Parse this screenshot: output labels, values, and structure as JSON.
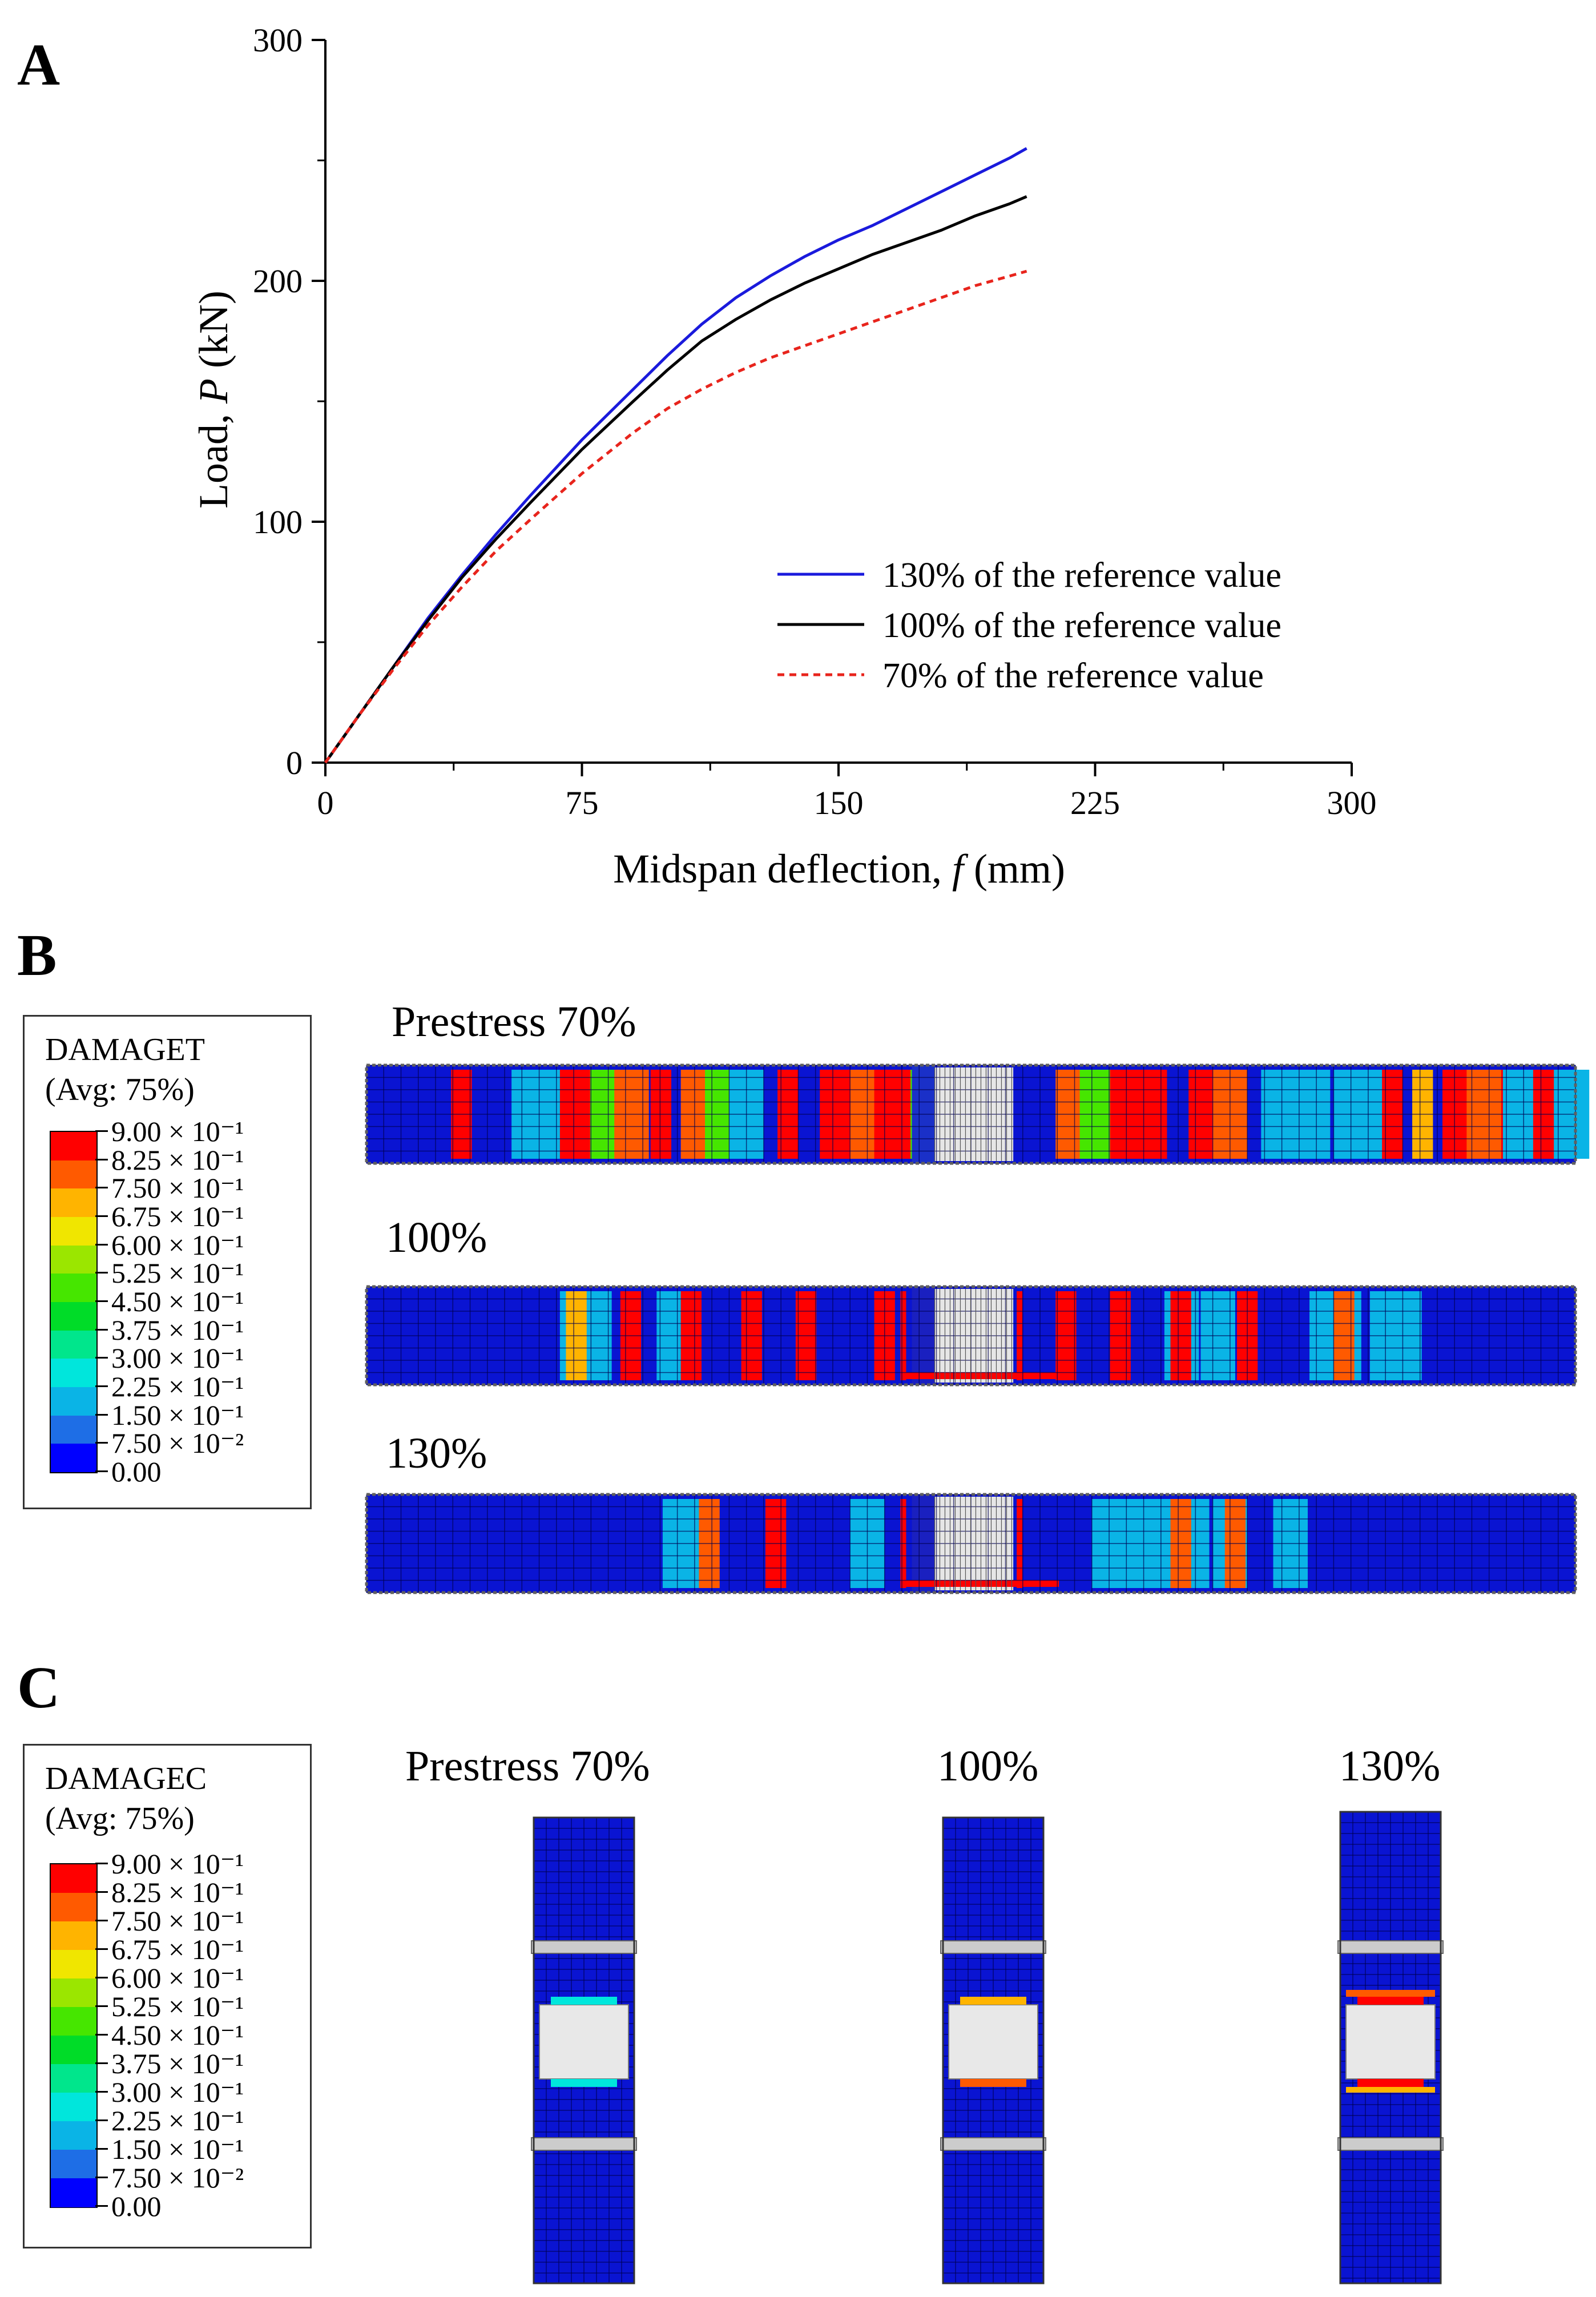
{
  "panel_labels": {
    "a": "A",
    "b": "B",
    "c": "C"
  },
  "chart_data": {
    "type": "line",
    "xlabel_text": "Midspan deflection, ",
    "xlabel_var": "f",
    "xlabel_unit": " (mm)",
    "ylabel_text": "Load, ",
    "ylabel_var": "P",
    "ylabel_unit": " (kN)",
    "xlim": [
      0,
      300
    ],
    "ylim": [
      0,
      300
    ],
    "xticks": [
      0,
      75,
      150,
      225,
      300
    ],
    "yticks": [
      0,
      100,
      200,
      300
    ],
    "grid": false,
    "legend_position": "bottom-right",
    "series": [
      {
        "name": "130% of the reference value",
        "color": "#1a1adc",
        "dash": "solid",
        "x": [
          0,
          10,
          20,
          30,
          40,
          50,
          60,
          75,
          90,
          100,
          110,
          120,
          130,
          140,
          150,
          160,
          170,
          180,
          190,
          200,
          205
        ],
        "y": [
          0,
          20,
          40,
          60,
          78,
          95,
          111,
          134,
          155,
          169,
          182,
          193,
          202,
          210,
          217,
          223,
          230,
          237,
          244,
          251,
          255
        ]
      },
      {
        "name": "100% of the reference value",
        "color": "#000000",
        "dash": "solid",
        "x": [
          0,
          10,
          20,
          30,
          40,
          50,
          60,
          75,
          90,
          100,
          110,
          120,
          130,
          140,
          150,
          160,
          170,
          180,
          190,
          200,
          205
        ],
        "y": [
          0,
          20,
          40,
          59,
          77,
          93,
          108,
          130,
          150,
          163,
          175,
          184,
          192,
          199,
          205,
          211,
          216,
          221,
          227,
          232,
          235
        ]
      },
      {
        "name": "70% of the reference value",
        "color": "#e8241c",
        "dash": "dashed",
        "x": [
          0,
          10,
          20,
          30,
          40,
          50,
          60,
          75,
          90,
          100,
          110,
          120,
          130,
          140,
          150,
          160,
          170,
          180,
          190,
          200,
          205
        ],
        "y": [
          0,
          20,
          39,
          57,
          73,
          88,
          101,
          120,
          137,
          147,
          155,
          162,
          168,
          173,
          178,
          183,
          188,
          193,
          198,
          202,
          204
        ]
      }
    ]
  },
  "damage_legend": {
    "avg": "(Avg: 75%)",
    "levels": [
      "9.00 × 10⁻¹",
      "8.25 × 10⁻¹",
      "7.50 × 10⁻¹",
      "6.75 × 10⁻¹",
      "6.00 × 10⁻¹",
      "5.25 × 10⁻¹",
      "4.50 × 10⁻¹",
      "3.75 × 10⁻¹",
      "3.00 × 10⁻¹",
      "2.25 × 10⁻¹",
      "1.50 × 10⁻¹",
      "7.50 × 10⁻²",
      "0.00"
    ],
    "colors": [
      "#ff0000",
      "#ff5a00",
      "#ffb400",
      "#f0e600",
      "#9be600",
      "#46e600",
      "#00dc28",
      "#00e68c",
      "#00e6dc",
      "#0ab4e6",
      "#1e6ee6",
      "#0000ff"
    ]
  },
  "panel_b": {
    "legend_title": "DAMAGET",
    "cases": [
      "Prestress 70%",
      "100%",
      "130%"
    ]
  },
  "panel_c": {
    "legend_title": "DAMAGEC",
    "cases": [
      "Prestress 70%",
      "100%",
      "130%"
    ]
  }
}
